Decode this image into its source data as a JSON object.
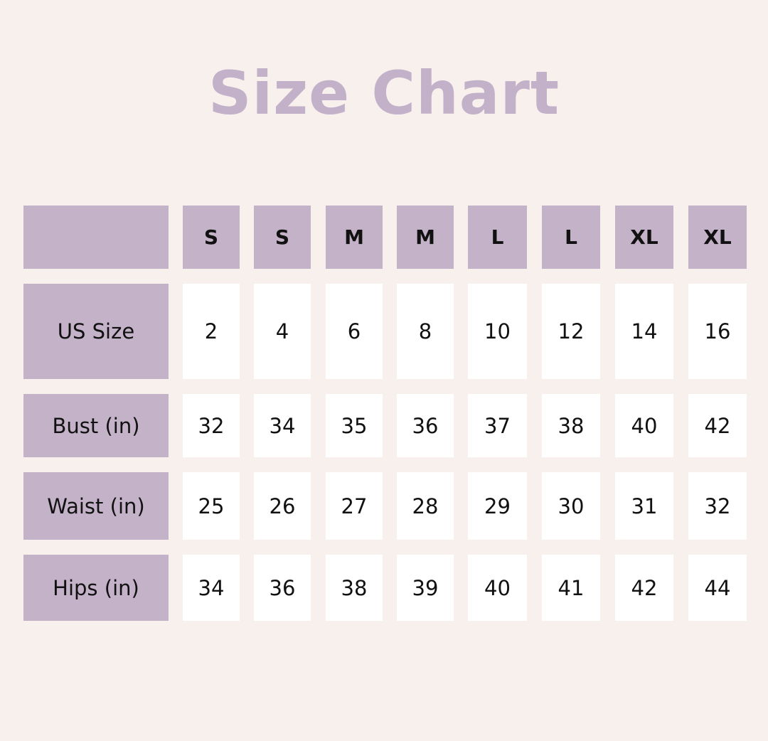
{
  "title": "Size Chart",
  "colors": {
    "background": "#f8f0ec",
    "accent": "#c4b2c8",
    "title": "#c3b1c9",
    "cell": "#ffffff"
  },
  "chart_data": {
    "type": "table",
    "title": "Size Chart",
    "columns": [
      "S",
      "S",
      "M",
      "M",
      "L",
      "L",
      "XL",
      "XL"
    ],
    "rows": [
      {
        "label": "US Size",
        "values": [
          "2",
          "4",
          "6",
          "8",
          "10",
          "12",
          "14",
          "16"
        ]
      },
      {
        "label": "Bust (in)",
        "values": [
          "32",
          "34",
          "35",
          "36",
          "37",
          "38",
          "40",
          "42"
        ]
      },
      {
        "label": "Waist (in)",
        "values": [
          "25",
          "26",
          "27",
          "28",
          "29",
          "30",
          "31",
          "32"
        ]
      },
      {
        "label": "Hips (in)",
        "values": [
          "34",
          "36",
          "38",
          "39",
          "40",
          "41",
          "42",
          "44"
        ]
      }
    ]
  }
}
